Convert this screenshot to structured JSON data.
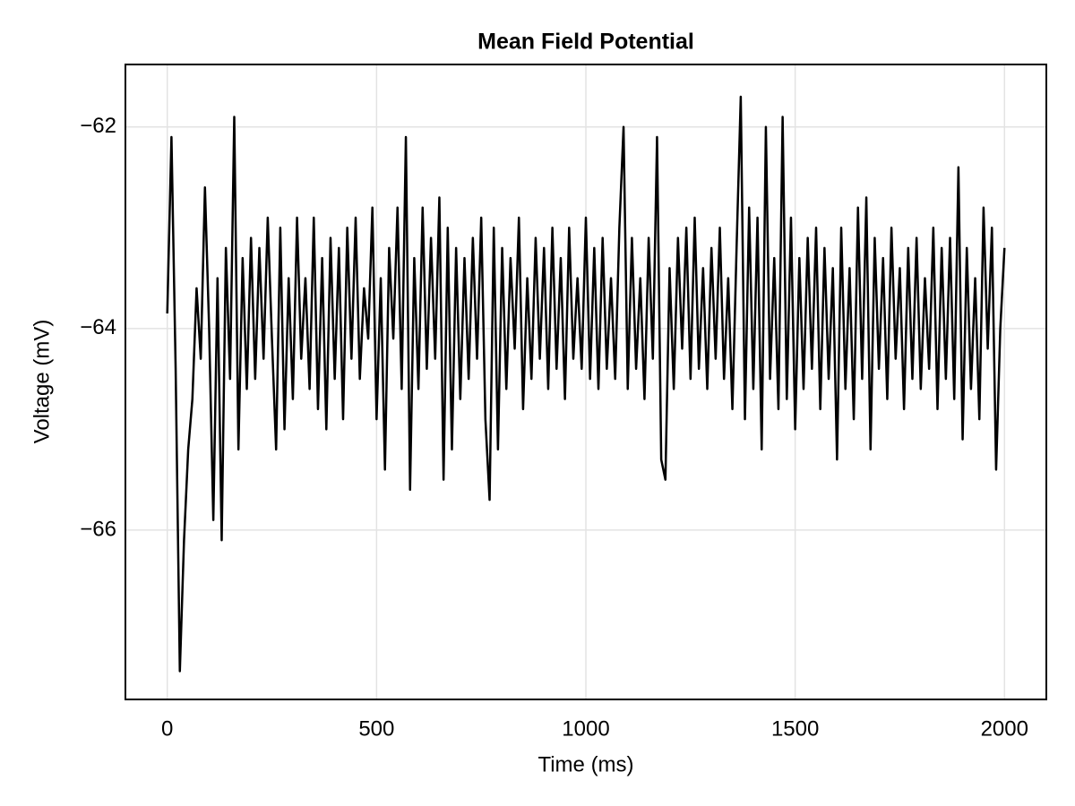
{
  "chart_data": {
    "type": "line",
    "title": "Mean Field Potential",
    "x_label": "Time (ms)",
    "y_label": "Voltage (mV)",
    "x": [
      0,
      10,
      20,
      30,
      40,
      50,
      60,
      70,
      80,
      90,
      100,
      110,
      120,
      130,
      140,
      150,
      160,
      170,
      180,
      190,
      200,
      210,
      220,
      230,
      240,
      250,
      260,
      270,
      280,
      290,
      300,
      310,
      320,
      330,
      340,
      350,
      360,
      370,
      380,
      390,
      400,
      410,
      420,
      430,
      440,
      450,
      460,
      470,
      480,
      490,
      500,
      510,
      520,
      530,
      540,
      550,
      560,
      570,
      580,
      590,
      600,
      610,
      620,
      630,
      640,
      650,
      660,
      670,
      680,
      690,
      700,
      710,
      720,
      730,
      740,
      750,
      760,
      770,
      780,
      790,
      800,
      810,
      820,
      830,
      840,
      850,
      860,
      870,
      880,
      890,
      900,
      910,
      920,
      930,
      940,
      950,
      960,
      970,
      980,
      990,
      1000,
      1010,
      1020,
      1030,
      1040,
      1050,
      1060,
      1070,
      1080,
      1090,
      1100,
      1110,
      1120,
      1130,
      1140,
      1150,
      1160,
      1170,
      1180,
      1190,
      1200,
      1210,
      1220,
      1230,
      1240,
      1250,
      1260,
      1270,
      1280,
      1290,
      1300,
      1310,
      1320,
      1330,
      1340,
      1350,
      1360,
      1370,
      1380,
      1390,
      1400,
      1410,
      1420,
      1430,
      1440,
      1450,
      1460,
      1470,
      1480,
      1490,
      1500,
      1510,
      1520,
      1530,
      1540,
      1550,
      1560,
      1570,
      1580,
      1590,
      1600,
      1610,
      1620,
      1630,
      1640,
      1650,
      1660,
      1670,
      1680,
      1690,
      1700,
      1710,
      1720,
      1730,
      1740,
      1750,
      1760,
      1770,
      1780,
      1790,
      1800,
      1810,
      1820,
      1830,
      1840,
      1850,
      1860,
      1870,
      1880,
      1890,
      1900,
      1910,
      1920,
      1930,
      1940,
      1950,
      1960,
      1970,
      1980,
      1990,
      2000
    ],
    "series": [
      {
        "name": "Mean Field Potential",
        "color": "#000000",
        "values": [
          -63.85,
          -62.1,
          -64.4,
          -67.4,
          -66.1,
          -65.2,
          -64.7,
          -63.6,
          -64.3,
          -62.6,
          -64.0,
          -65.9,
          -63.5,
          -66.1,
          -63.2,
          -64.5,
          -61.9,
          -65.2,
          -63.3,
          -64.6,
          -63.1,
          -64.5,
          -63.2,
          -64.3,
          -62.9,
          -64.1,
          -65.2,
          -63.0,
          -65.0,
          -63.5,
          -64.7,
          -62.9,
          -64.3,
          -63.5,
          -64.6,
          -62.9,
          -64.8,
          -63.3,
          -65.0,
          -63.1,
          -64.5,
          -63.2,
          -64.9,
          -63.0,
          -64.3,
          -62.9,
          -64.5,
          -63.6,
          -64.1,
          -62.8,
          -64.9,
          -63.5,
          -65.4,
          -63.2,
          -64.1,
          -62.8,
          -64.6,
          -62.1,
          -65.6,
          -63.3,
          -64.6,
          -62.8,
          -64.4,
          -63.1,
          -64.3,
          -62.7,
          -65.5,
          -63.0,
          -65.2,
          -63.2,
          -64.7,
          -63.3,
          -64.5,
          -63.1,
          -64.3,
          -62.9,
          -64.9,
          -65.7,
          -63.0,
          -65.2,
          -63.2,
          -64.6,
          -63.3,
          -64.2,
          -62.9,
          -64.8,
          -63.5,
          -64.5,
          -63.1,
          -64.3,
          -63.2,
          -64.6,
          -63.0,
          -64.4,
          -63.3,
          -64.7,
          -63.0,
          -64.3,
          -63.5,
          -64.4,
          -62.9,
          -64.5,
          -63.2,
          -64.6,
          -63.1,
          -64.4,
          -63.5,
          -64.5,
          -63.0,
          -62.0,
          -64.6,
          -63.1,
          -64.4,
          -63.5,
          -64.7,
          -63.1,
          -64.3,
          -62.1,
          -65.3,
          -65.5,
          -63.4,
          -64.6,
          -63.1,
          -64.2,
          -63.0,
          -64.5,
          -62.9,
          -64.4,
          -63.4,
          -64.6,
          -63.2,
          -64.3,
          -63.0,
          -64.5,
          -63.5,
          -64.8,
          -63.2,
          -61.7,
          -64.9,
          -62.8,
          -64.6,
          -62.9,
          -65.2,
          -62.0,
          -64.5,
          -63.3,
          -64.8,
          -61.9,
          -64.7,
          -62.9,
          -65.0,
          -63.3,
          -64.6,
          -63.1,
          -64.4,
          -63.0,
          -64.8,
          -63.2,
          -64.5,
          -63.4,
          -65.3,
          -63.0,
          -64.6,
          -63.4,
          -64.9,
          -62.8,
          -64.5,
          -62.7,
          -65.2,
          -63.1,
          -64.4,
          -63.3,
          -64.7,
          -63.0,
          -64.3,
          -63.4,
          -64.8,
          -63.2,
          -64.5,
          -63.1,
          -64.6,
          -63.5,
          -64.4,
          -63.0,
          -64.8,
          -63.2,
          -64.5,
          -63.1,
          -64.7,
          -62.4,
          -65.1,
          -63.2,
          -64.6,
          -63.5,
          -64.9,
          -62.8,
          -64.2,
          -63.0,
          -65.4,
          -64.0,
          -63.2
        ]
      }
    ],
    "xlim": [
      -100,
      2100
    ],
    "ylim": [
      -67.68,
      -61.38
    ],
    "xticks": [
      0,
      500,
      1000,
      1500,
      2000
    ],
    "yticks": [
      {
        "value": -66,
        "label": "−66"
      },
      {
        "value": -64,
        "label": "−64"
      },
      {
        "value": -62,
        "label": "−62"
      }
    ],
    "grid": true
  }
}
